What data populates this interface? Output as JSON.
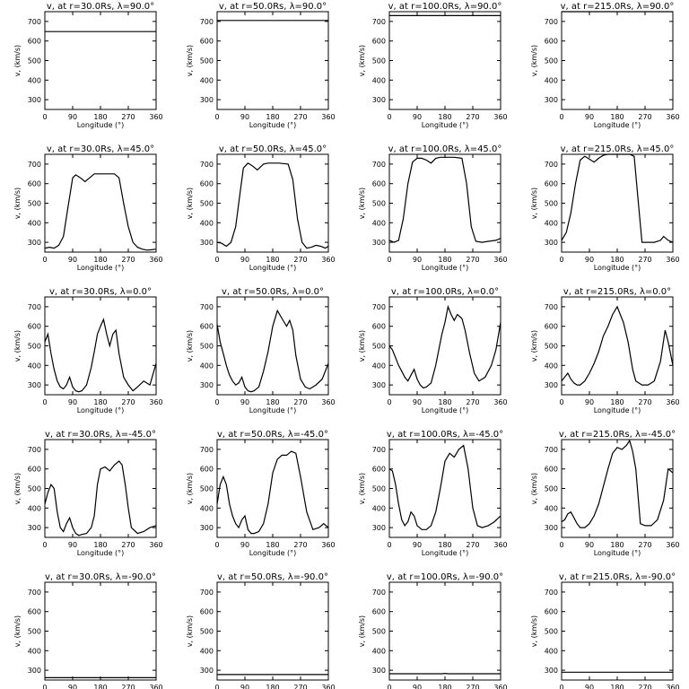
{
  "figure": {
    "xlabel": "Longitude (°)",
    "ylabel": "v, (km/s)",
    "xticks": [
      "0",
      "90",
      "180",
      "270",
      "360"
    ],
    "yticks": [
      "300",
      "400",
      "500",
      "600",
      "700"
    ]
  },
  "chart_data": [
    {
      "type": "line",
      "title": "v, at r=30.0Rs, λ=90.0°",
      "xlabel": "Longitude (°)",
      "ylabel": "v, (km/s)",
      "xlim": [
        0,
        360
      ],
      "ylim": [
        250,
        750
      ],
      "x": [
        0,
        360
      ],
      "y": [
        648,
        648
      ]
    },
    {
      "type": "line",
      "title": "v, at r=50.0Rs, λ=90.0°",
      "xlabel": "Longitude (°)",
      "ylabel": "v, (km/s)",
      "xlim": [
        0,
        360
      ],
      "ylim": [
        250,
        750
      ],
      "x": [
        0,
        360
      ],
      "y": [
        705,
        705
      ]
    },
    {
      "type": "line",
      "title": "v, at r=100.0Rs, λ=90.0°",
      "xlabel": "Longitude (°)",
      "ylabel": "v, (km/s)",
      "xlim": [
        0,
        360
      ],
      "ylim": [
        250,
        750
      ],
      "x": [
        0,
        360
      ],
      "y": [
        730,
        730
      ]
    },
    {
      "type": "line",
      "title": "v, at r=215.0Rs, λ=90.0°",
      "xlabel": "Longitude (°)",
      "ylabel": "v, (km/s)",
      "xlim": [
        0,
        360
      ],
      "ylim": [
        250,
        750
      ],
      "x": [
        0,
        360
      ],
      "y": [
        750,
        750
      ]
    },
    {
      "type": "line",
      "title": "v, at r=30.0Rs, λ=45.0°",
      "xlabel": "Longitude (°)",
      "ylabel": "v, (km/s)",
      "xlim": [
        0,
        360
      ],
      "ylim": [
        250,
        750
      ],
      "x": [
        0,
        15,
        30,
        45,
        60,
        75,
        90,
        100,
        115,
        130,
        145,
        160,
        180,
        200,
        225,
        240,
        255,
        270,
        285,
        300,
        315,
        330,
        345,
        360
      ],
      "y": [
        270,
        275,
        270,
        285,
        330,
        480,
        630,
        645,
        630,
        610,
        630,
        650,
        650,
        650,
        650,
        630,
        500,
        380,
        300,
        275,
        265,
        260,
        262,
        265
      ]
    },
    {
      "type": "line",
      "title": "v, at r=50.0Rs, λ=45.0°",
      "xlabel": "Longitude (°)",
      "ylabel": "v, (km/s)",
      "xlim": [
        0,
        360
      ],
      "ylim": [
        250,
        750
      ],
      "x": [
        0,
        15,
        30,
        45,
        60,
        75,
        85,
        100,
        115,
        130,
        150,
        165,
        180,
        200,
        230,
        245,
        260,
        275,
        290,
        305,
        320,
        335,
        350,
        360
      ],
      "y": [
        300,
        295,
        280,
        300,
        380,
        560,
        680,
        705,
        690,
        670,
        700,
        705,
        705,
        705,
        700,
        620,
        420,
        300,
        270,
        275,
        285,
        280,
        270,
        280
      ]
    },
    {
      "type": "line",
      "title": "v, at r=100.0Rs, λ=45.0°",
      "xlabel": "Longitude (°)",
      "ylabel": "v, (km/s)",
      "xlim": [
        0,
        360
      ],
      "ylim": [
        250,
        750
      ],
      "x": [
        0,
        15,
        30,
        45,
        60,
        75,
        90,
        105,
        120,
        135,
        150,
        165,
        180,
        210,
        235,
        250,
        265,
        280,
        300,
        320,
        345,
        360
      ],
      "y": [
        310,
        300,
        310,
        420,
        600,
        710,
        730,
        730,
        720,
        705,
        730,
        735,
        735,
        735,
        730,
        600,
        380,
        305,
        300,
        305,
        310,
        320
      ]
    },
    {
      "type": "line",
      "title": "v, at r=215.0Rs, λ=45.0°",
      "xlabel": "Longitude (°)",
      "ylabel": "v, (km/s)",
      "xlim": [
        0,
        360
      ],
      "ylim": [
        250,
        750
      ],
      "x": [
        0,
        15,
        30,
        45,
        60,
        75,
        90,
        105,
        120,
        135,
        150,
        165,
        180,
        200,
        220,
        235,
        245,
        260,
        280,
        300,
        320,
        330,
        345,
        360
      ],
      "y": [
        310,
        350,
        450,
        600,
        720,
        740,
        725,
        710,
        730,
        745,
        750,
        750,
        750,
        750,
        750,
        740,
        560,
        300,
        300,
        300,
        310,
        330,
        310,
        300
      ]
    },
    {
      "type": "line",
      "title": "v, at r=30.0Rs, λ=0.0°",
      "xlabel": "Longitude (°)",
      "ylabel": "v, (km/s)",
      "xlim": [
        0,
        360
      ],
      "ylim": [
        250,
        750
      ],
      "x": [
        0,
        10,
        20,
        30,
        40,
        50,
        60,
        70,
        80,
        90,
        100,
        110,
        120,
        135,
        150,
        160,
        170,
        180,
        190,
        200,
        210,
        220,
        230,
        240,
        255,
        270,
        285,
        300,
        320,
        340,
        360
      ],
      "y": [
        520,
        560,
        460,
        380,
        320,
        290,
        280,
        300,
        340,
        290,
        270,
        265,
        270,
        300,
        390,
        470,
        560,
        600,
        635,
        560,
        500,
        560,
        580,
        460,
        340,
        300,
        270,
        290,
        320,
        300,
        410
      ]
    },
    {
      "type": "line",
      "title": "v, at r=50.0Rs, λ=0.0°",
      "xlabel": "Longitude (°)",
      "ylabel": "v, (km/s)",
      "xlim": [
        0,
        360
      ],
      "ylim": [
        250,
        750
      ],
      "x": [
        0,
        10,
        20,
        30,
        40,
        50,
        60,
        70,
        80,
        90,
        100,
        110,
        120,
        135,
        150,
        165,
        180,
        195,
        210,
        225,
        235,
        245,
        255,
        270,
        285,
        300,
        320,
        340,
        360
      ],
      "y": [
        610,
        520,
        460,
        400,
        350,
        320,
        300,
        310,
        340,
        290,
        270,
        265,
        270,
        290,
        370,
        470,
        600,
        680,
        640,
        600,
        630,
        580,
        450,
        330,
        290,
        280,
        300,
        330,
        410
      ]
    },
    {
      "type": "line",
      "title": "v, at r=100.0Rs, λ=0.0°",
      "xlabel": "Longitude (°)",
      "ylabel": "v, (km/s)",
      "xlim": [
        0,
        360
      ],
      "ylim": [
        250,
        750
      ],
      "x": [
        0,
        10,
        20,
        30,
        40,
        50,
        60,
        70,
        80,
        90,
        100,
        110,
        120,
        135,
        150,
        160,
        170,
        180,
        190,
        200,
        210,
        220,
        235,
        245,
        260,
        275,
        290,
        310,
        330,
        345,
        360
      ],
      "y": [
        500,
        480,
        440,
        400,
        370,
        340,
        320,
        350,
        380,
        330,
        300,
        285,
        290,
        310,
        400,
        480,
        560,
        620,
        700,
        660,
        630,
        660,
        640,
        580,
        460,
        360,
        320,
        340,
        400,
        480,
        620
      ]
    },
    {
      "type": "line",
      "title": "v, at r=215.0Rs, λ=0.0°",
      "xlabel": "Longitude (°)",
      "ylabel": "v, (km/s)",
      "xlim": [
        0,
        360
      ],
      "ylim": [
        250,
        750
      ],
      "x": [
        0,
        10,
        20,
        30,
        40,
        50,
        60,
        75,
        90,
        105,
        120,
        135,
        150,
        165,
        180,
        190,
        200,
        215,
        230,
        240,
        250,
        260,
        280,
        300,
        320,
        335,
        345,
        360
      ],
      "y": [
        320,
        340,
        360,
        330,
        310,
        300,
        300,
        320,
        360,
        410,
        470,
        550,
        600,
        660,
        700,
        660,
        620,
        520,
        380,
        320,
        310,
        300,
        300,
        320,
        420,
        580,
        520,
        400
      ]
    },
    {
      "type": "line",
      "title": "v, at r=30.0Rs, λ=-45.0°",
      "xlabel": "Longitude (°)",
      "ylabel": "v, (km/s)",
      "xlim": [
        0,
        360
      ],
      "ylim": [
        250,
        750
      ],
      "x": [
        0,
        10,
        20,
        30,
        40,
        50,
        60,
        70,
        80,
        90,
        100,
        110,
        120,
        135,
        150,
        160,
        170,
        180,
        195,
        210,
        225,
        240,
        250,
        260,
        270,
        280,
        300,
        320,
        340,
        360
      ],
      "y": [
        420,
        480,
        520,
        500,
        380,
        300,
        280,
        320,
        350,
        300,
        270,
        260,
        265,
        270,
        300,
        360,
        520,
        600,
        610,
        590,
        620,
        640,
        620,
        520,
        400,
        300,
        270,
        280,
        300,
        310
      ]
    },
    {
      "type": "line",
      "title": "v, at r=50.0Rs, λ=-45.0°",
      "xlabel": "Longitude (°)",
      "ylabel": "v, (km/s)",
      "xlim": [
        0,
        360
      ],
      "ylim": [
        250,
        750
      ],
      "x": [
        0,
        10,
        20,
        30,
        40,
        50,
        60,
        70,
        80,
        90,
        100,
        110,
        120,
        135,
        150,
        165,
        180,
        195,
        210,
        225,
        240,
        255,
        270,
        290,
        310,
        330,
        345,
        360
      ],
      "y": [
        420,
        520,
        560,
        520,
        420,
        360,
        320,
        300,
        340,
        360,
        290,
        270,
        270,
        280,
        320,
        420,
        580,
        650,
        670,
        670,
        690,
        680,
        560,
        380,
        290,
        300,
        320,
        300
      ]
    },
    {
      "type": "line",
      "title": "v, at r=100.0Rs, λ=-45.0°",
      "xlabel": "Longitude (°)",
      "ylabel": "v, (km/s)",
      "xlim": [
        0,
        360
      ],
      "ylim": [
        250,
        750
      ],
      "x": [
        0,
        10,
        20,
        30,
        40,
        50,
        60,
        70,
        80,
        90,
        105,
        120,
        135,
        150,
        165,
        180,
        195,
        210,
        225,
        240,
        255,
        270,
        285,
        300,
        320,
        340,
        360
      ],
      "y": [
        600,
        590,
        520,
        420,
        340,
        310,
        330,
        380,
        360,
        310,
        290,
        290,
        310,
        380,
        500,
        640,
        680,
        660,
        700,
        720,
        600,
        400,
        310,
        300,
        310,
        330,
        360
      ]
    },
    {
      "type": "line",
      "title": "v, at r=215.0Rs, λ=-45.0°",
      "xlabel": "Longitude (°)",
      "ylabel": "v, (km/s)",
      "xlim": [
        0,
        360
      ],
      "ylim": [
        250,
        750
      ],
      "x": [
        0,
        10,
        20,
        30,
        40,
        50,
        60,
        75,
        90,
        105,
        120,
        135,
        150,
        165,
        180,
        195,
        210,
        220,
        230,
        240,
        255,
        270,
        290,
        310,
        330,
        345,
        360
      ],
      "y": [
        330,
        340,
        370,
        380,
        350,
        320,
        300,
        300,
        320,
        360,
        420,
        510,
        600,
        680,
        710,
        700,
        720,
        745,
        690,
        600,
        320,
        310,
        310,
        340,
        440,
        600,
        580
      ]
    },
    {
      "type": "line",
      "title": "v, at r=30.0Rs, λ=-90.0°",
      "xlabel": "Longitude (°)",
      "ylabel": "v, (km/s)",
      "xlim": [
        0,
        360
      ],
      "ylim": [
        250,
        750
      ],
      "x": [
        0,
        360
      ],
      "y": [
        262,
        262
      ]
    },
    {
      "type": "line",
      "title": "v, at r=50.0Rs, λ=-90.0°",
      "xlabel": "Longitude (°)",
      "ylabel": "v, (km/s)",
      "xlim": [
        0,
        360
      ],
      "ylim": [
        250,
        750
      ],
      "x": [
        0,
        360
      ],
      "y": [
        278,
        278
      ]
    },
    {
      "type": "line",
      "title": "v, at r=100.0Rs, λ=-90.0°",
      "xlabel": "Longitude (°)",
      "ylabel": "v, (km/s)",
      "xlim": [
        0,
        360
      ],
      "ylim": [
        250,
        750
      ],
      "x": [
        0,
        170,
        180,
        190,
        360
      ],
      "y": [
        282,
        282,
        284,
        282,
        282
      ]
    },
    {
      "type": "line",
      "title": "v, at r=215.0Rs, λ=-90.0°",
      "xlabel": "Longitude (°)",
      "ylabel": "v, (km/s)",
      "xlim": [
        0,
        360
      ],
      "ylim": [
        250,
        750
      ],
      "x": [
        0,
        360
      ],
      "y": [
        290,
        290
      ]
    }
  ]
}
